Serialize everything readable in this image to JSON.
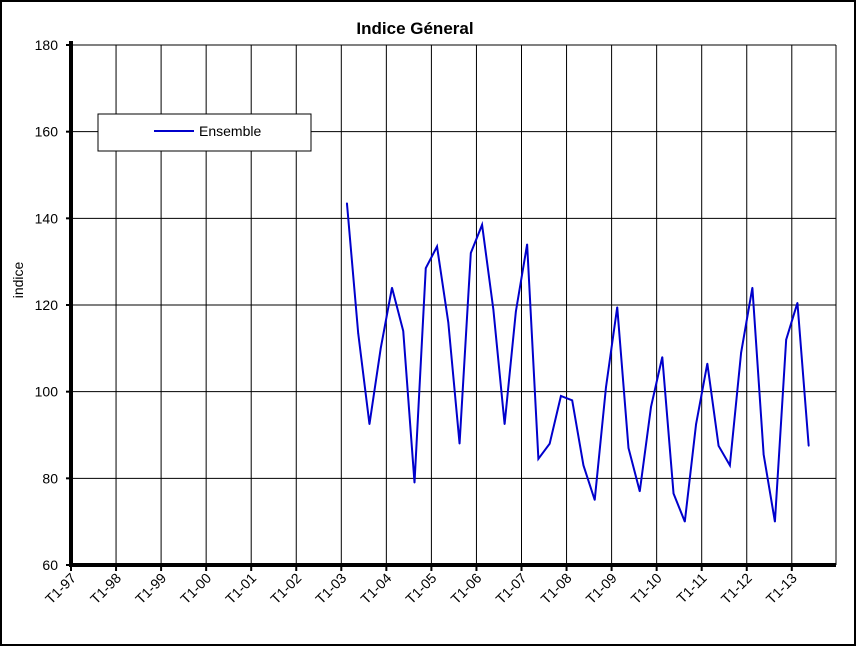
{
  "chart_data": {
    "type": "line",
    "title": "Indice Géneral",
    "ylabel": "indice",
    "xlabel": "",
    "ylim": [
      60,
      180
    ],
    "yticks": [
      60,
      80,
      100,
      120,
      140,
      160,
      180
    ],
    "xticks": [
      "T1-97",
      "T1-98",
      "T1-99",
      "T1-00",
      "T1-01",
      "T1-02",
      "T1-03",
      "T1-04",
      "T1-05",
      "T1-06",
      "T1-07",
      "T1-08",
      "T1-09",
      "T1-10",
      "T1-11",
      "T1-12",
      "T1-13"
    ],
    "grid": true,
    "legend_position": "top-left",
    "series": [
      {
        "name": "Ensemble",
        "color": "#0000cc",
        "start_quarter_index": 24,
        "values": [
          143.5,
          113.5,
          92.5,
          110.0,
          124.0,
          114.0,
          79.0,
          128.5,
          133.5,
          116.0,
          88.0,
          132.0,
          138.5,
          119.0,
          92.5,
          118.5,
          134.0,
          84.5,
          88.0,
          99.0,
          98.0,
          83.0,
          75.0,
          101.0,
          119.5,
          87.0,
          77.0,
          96.5,
          108.0,
          76.5,
          70.0,
          92.5,
          106.5,
          87.5,
          83.0,
          109.0,
          124.0,
          85.5,
          70.0,
          112.0,
          120.5,
          87.5
        ]
      }
    ]
  }
}
